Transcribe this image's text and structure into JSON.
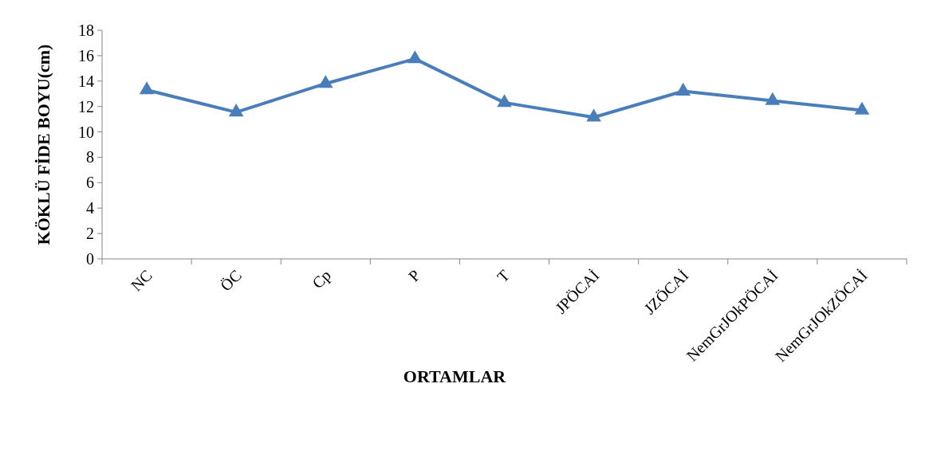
{
  "chart_data": {
    "type": "line",
    "xlabel": "ORTAMLAR",
    "ylabel": "KÖKLÜ FİDE BOYU(cm)",
    "categories": [
      "NC",
      "ÖC",
      "Cp",
      "P",
      "T",
      "JPÖCAİ",
      "JZÖCAİ",
      "NemGrJOkPÖCAİ",
      "NemGrJOkZÖCAİ"
    ],
    "series": [
      {
        "color": "#4a7ebb",
        "values": [
          13.3,
          11.55,
          13.8,
          15.75,
          12.3,
          11.15,
          13.2,
          12.45,
          11.7
        ]
      }
    ],
    "ylim": [
      0,
      18
    ],
    "yticks": [
      0,
      2,
      4,
      6,
      8,
      10,
      12,
      14,
      16,
      18
    ],
    "grid": false,
    "marker": "triangle",
    "line_style": "solid"
  }
}
